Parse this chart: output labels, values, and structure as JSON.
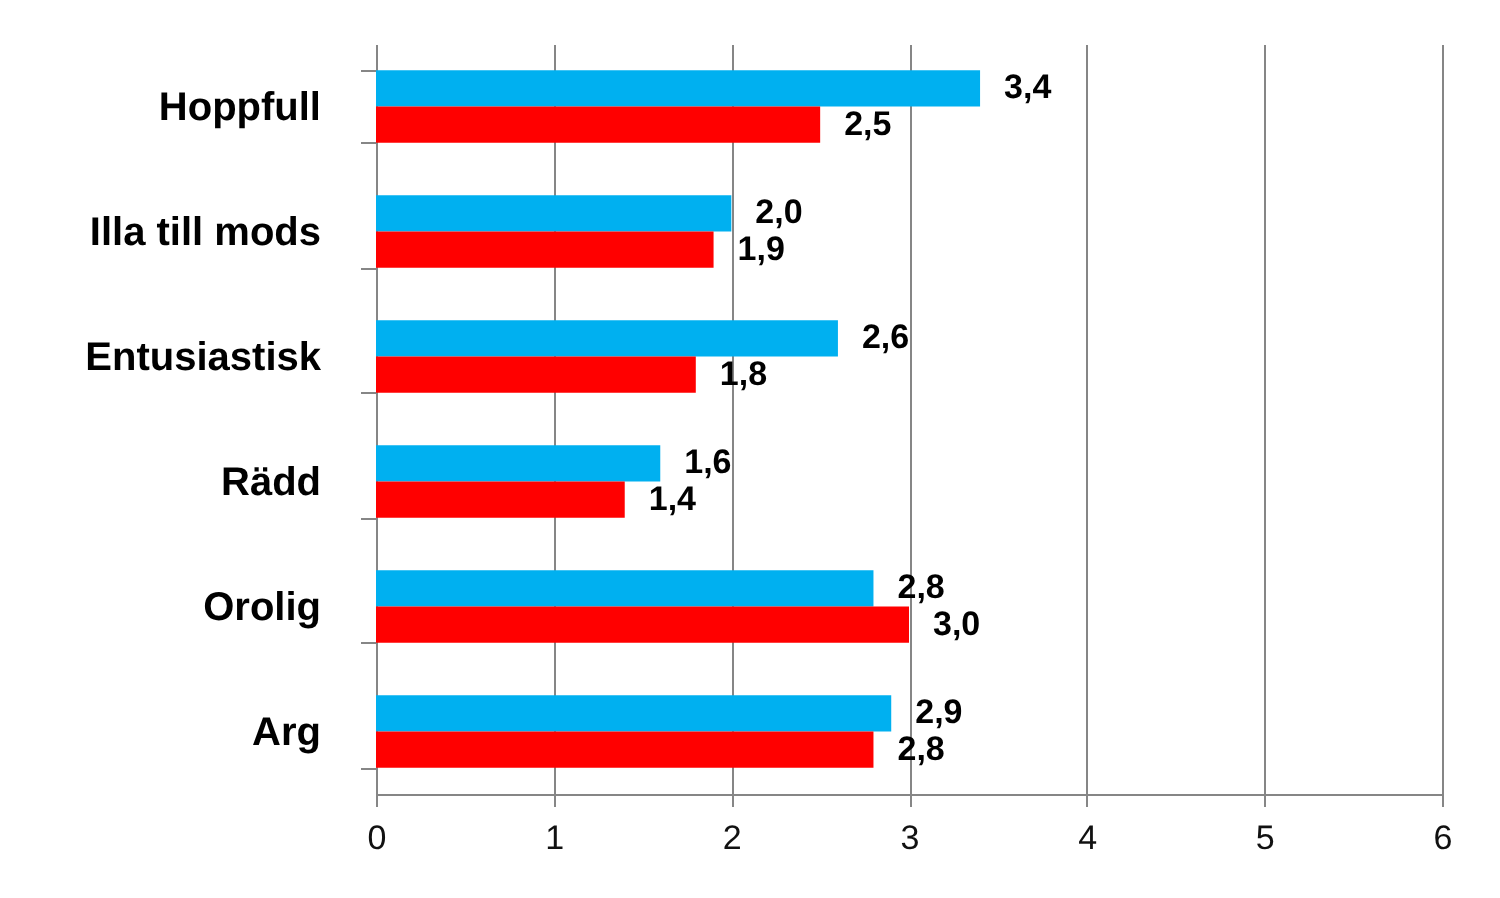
{
  "chart_data": {
    "type": "bar",
    "orientation": "horizontal",
    "categories": [
      "Hoppfull",
      "Illa till mods",
      "Entusiastisk",
      "Rädd",
      "Orolig",
      "Arg"
    ],
    "series": [
      {
        "color": "#00b0f0",
        "values": [
          3.4,
          2.0,
          2.6,
          1.6,
          2.8,
          2.9
        ],
        "value_labels": [
          "3,4",
          "2,0",
          "2,6",
          "1,6",
          "2,8",
          "2,9"
        ]
      },
      {
        "color": "#ff0000",
        "values": [
          2.5,
          1.9,
          1.8,
          1.4,
          3.0,
          2.8
        ],
        "value_labels": [
          "2,5",
          "1,9",
          "1,8",
          "1,4",
          "3,0",
          "2,8"
        ]
      }
    ],
    "xlim": [
      0,
      6
    ],
    "xticks": [
      0,
      1,
      2,
      3,
      4,
      5,
      6
    ],
    "grid": "x"
  }
}
